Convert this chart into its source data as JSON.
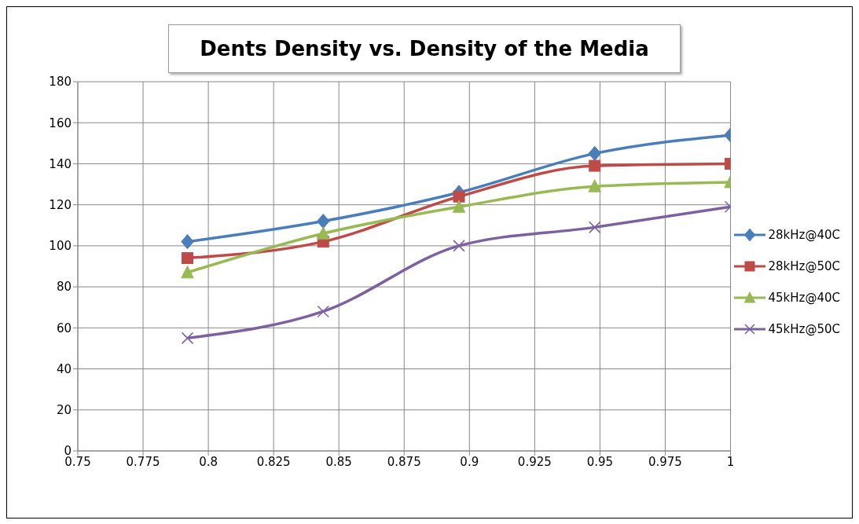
{
  "chart_data": {
    "type": "line",
    "title": "Dents Density vs. Density of the Media",
    "x": [
      0.792,
      0.844,
      0.896,
      0.948,
      1.0
    ],
    "series": [
      {
        "name": "28kHz@40C",
        "color": "#4a7ebb",
        "marker": "diamond",
        "values": [
          102,
          112,
          126,
          145,
          154
        ]
      },
      {
        "name": "28kHz@50C",
        "color": "#be4b48",
        "marker": "square",
        "values": [
          94,
          102,
          124,
          139,
          140
        ]
      },
      {
        "name": "45kHz@40C",
        "color": "#98b954",
        "marker": "triangle",
        "values": [
          87,
          106,
          119,
          129,
          131
        ]
      },
      {
        "name": "45kHz@50C",
        "color": "#7d60a0",
        "marker": "cross",
        "values": [
          55,
          68,
          100,
          109,
          119
        ]
      }
    ],
    "xlim": [
      0.75,
      1
    ],
    "xticks": [
      0.75,
      0.775,
      0.8,
      0.825,
      0.85,
      0.875,
      0.9,
      0.925,
      0.95,
      0.975,
      1
    ],
    "ylim": [
      0,
      180
    ],
    "yticks": [
      0,
      20,
      40,
      60,
      80,
      100,
      120,
      140,
      160,
      180
    ],
    "grid": true,
    "legend": "right",
    "line_style": "solid"
  }
}
